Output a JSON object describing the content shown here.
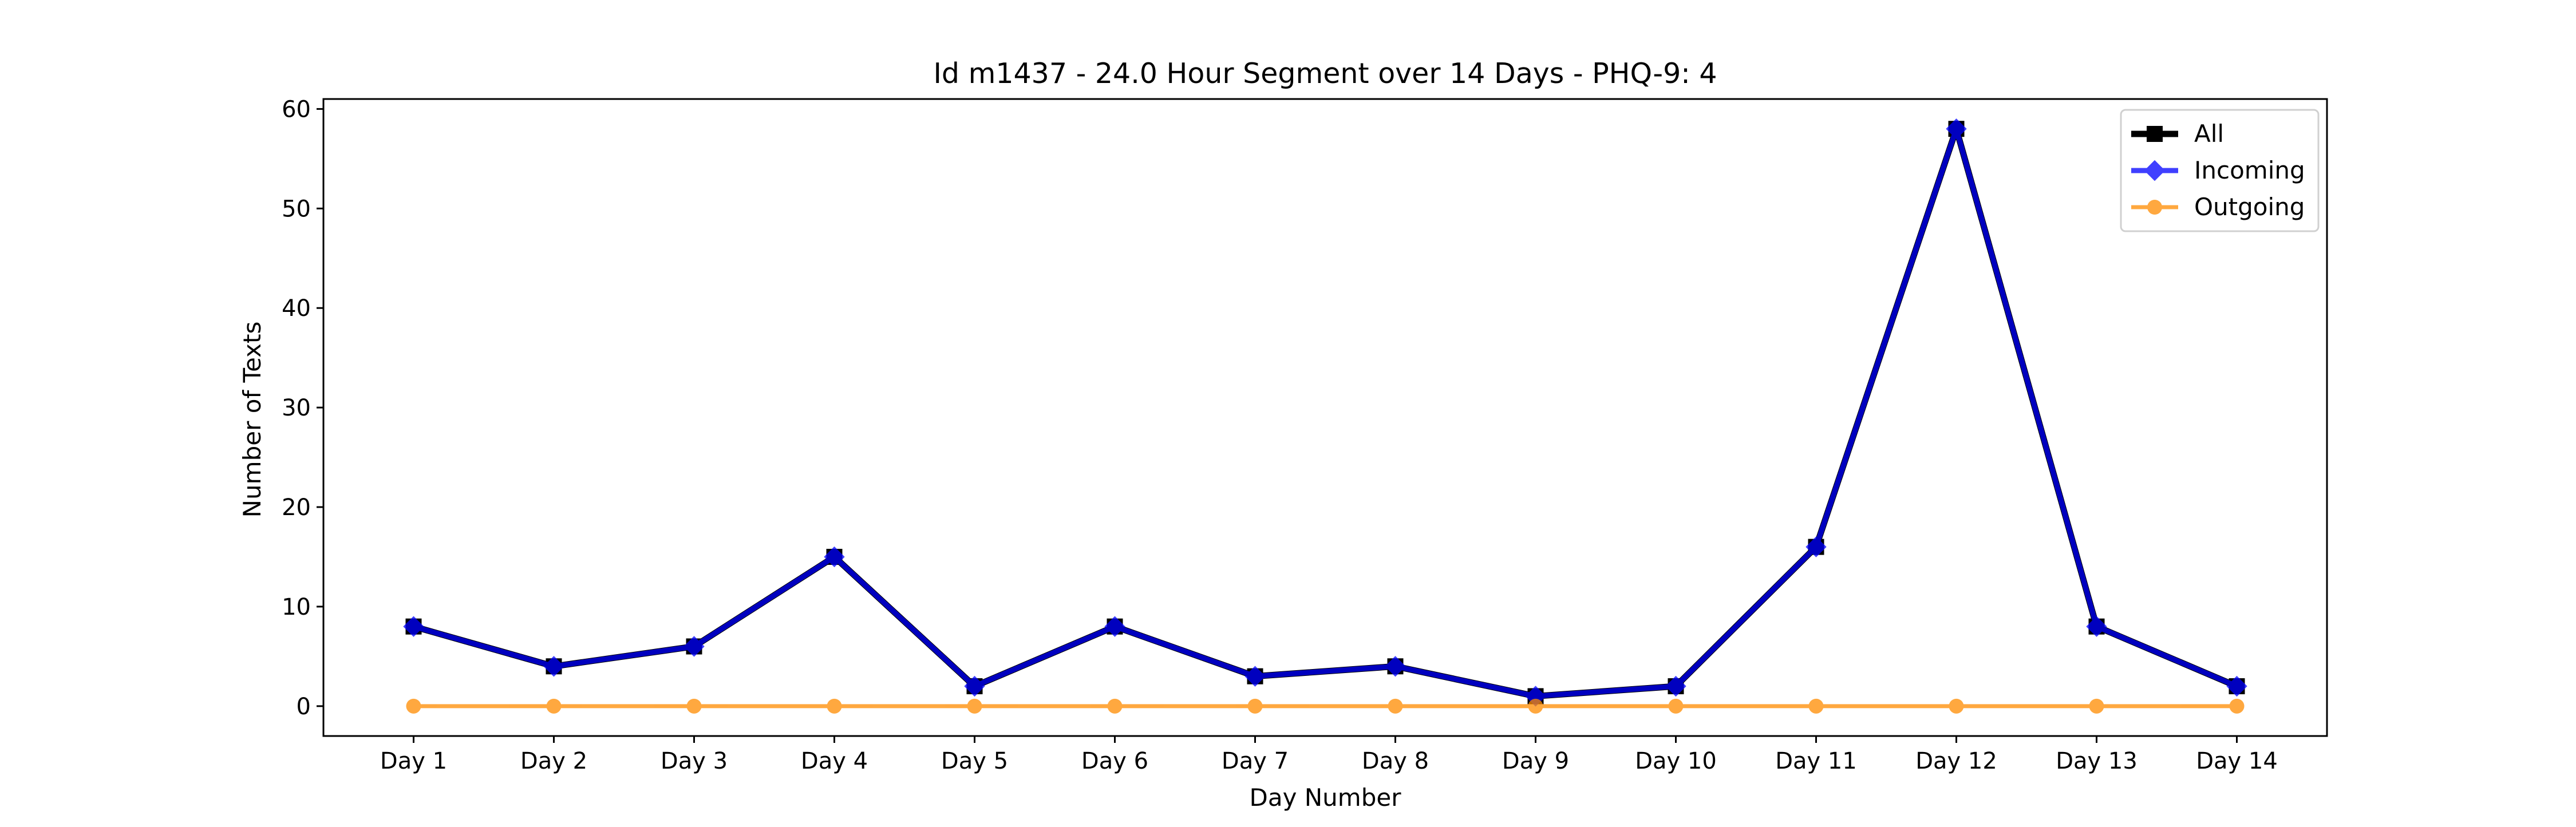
{
  "chart_data": {
    "type": "line",
    "title": "Id m1437 - 24.0 Hour Segment over 14 Days - PHQ-9: 4",
    "xlabel": "Day Number",
    "ylabel": "Number of Texts",
    "categories": [
      "Day 1",
      "Day 2",
      "Day 3",
      "Day 4",
      "Day 5",
      "Day 6",
      "Day 7",
      "Day 8",
      "Day 9",
      "Day 10",
      "Day 11",
      "Day 12",
      "Day 13",
      "Day 14"
    ],
    "ylim": [
      -3,
      61
    ],
    "yticks": [
      0,
      10,
      20,
      30,
      40,
      50,
      60
    ],
    "grid": false,
    "legend_position": "top-right",
    "series": [
      {
        "name": "All",
        "color": "#000000",
        "marker": "square",
        "values": [
          8,
          4,
          6,
          15,
          2,
          8,
          3,
          4,
          1,
          2,
          16,
          58,
          8,
          2
        ]
      },
      {
        "name": "Incoming",
        "color": "#0000ff",
        "marker": "diamond",
        "values": [
          8,
          4,
          6,
          15,
          2,
          8,
          3,
          4,
          1,
          2,
          16,
          58,
          8,
          2
        ]
      },
      {
        "name": "Outgoing",
        "color": "#ff8c00",
        "marker": "circle",
        "values": [
          0,
          0,
          0,
          0,
          0,
          0,
          0,
          0,
          0,
          0,
          0,
          0,
          0,
          0
        ]
      }
    ]
  }
}
